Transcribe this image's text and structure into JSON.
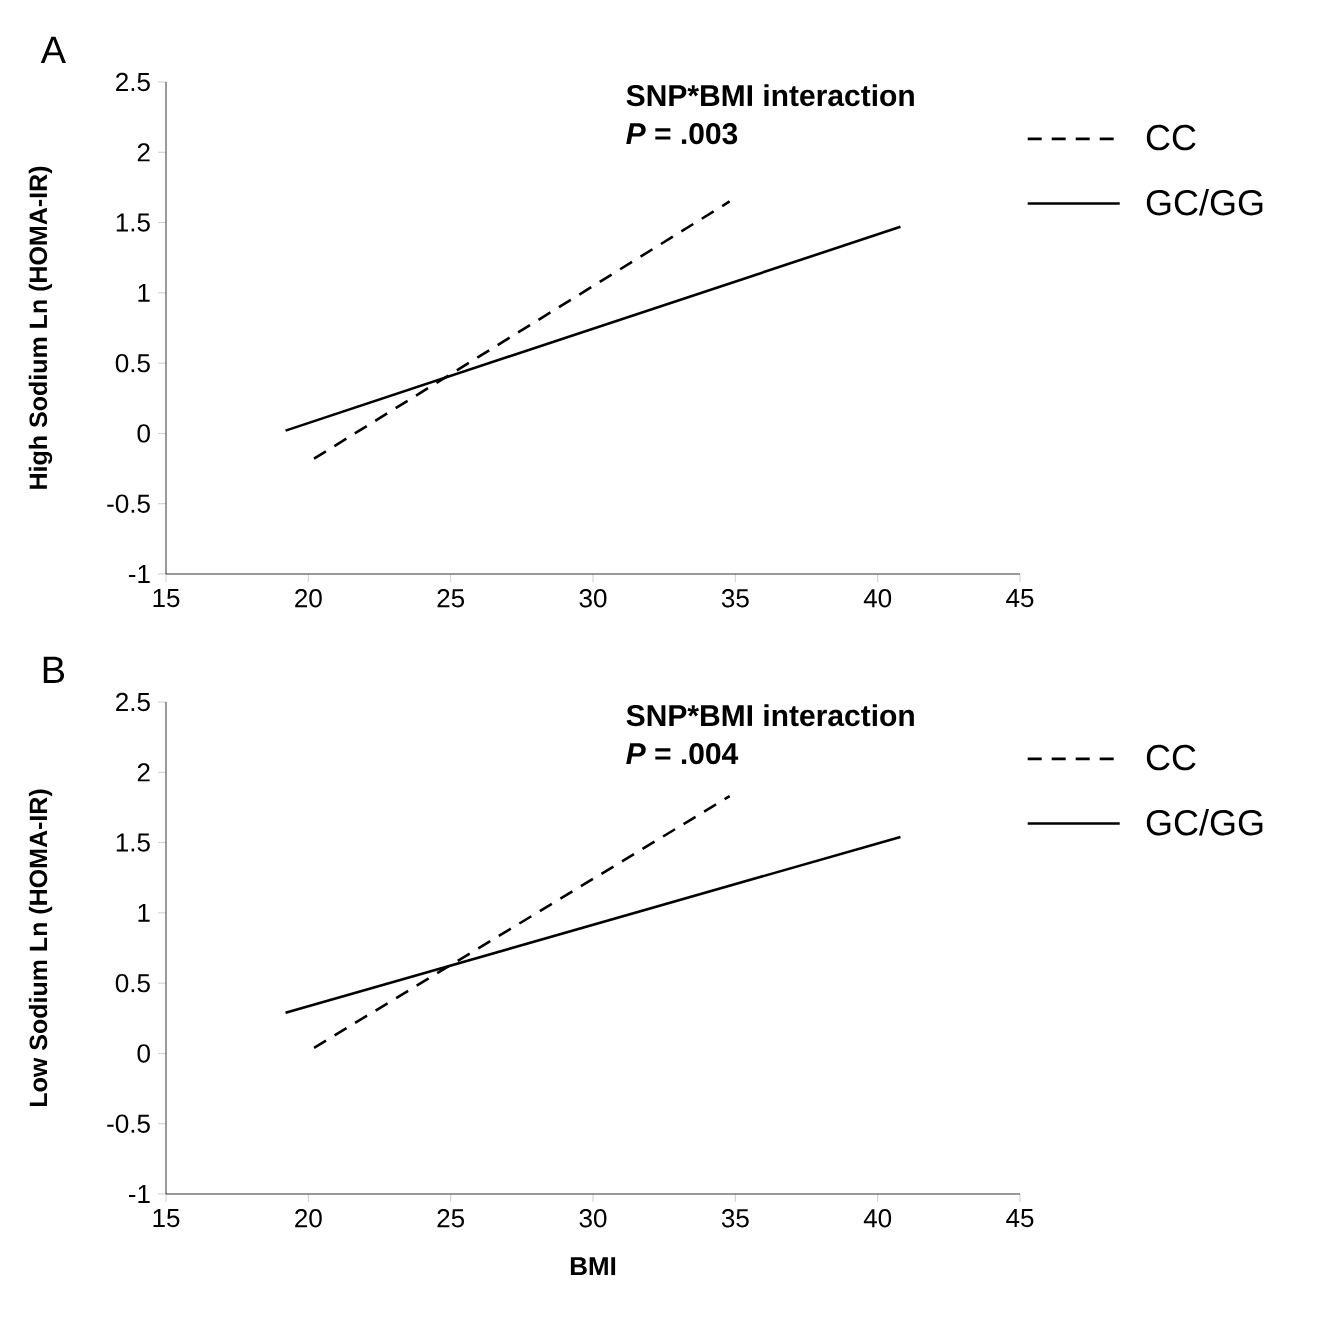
{
  "chart_data": [
    {
      "type": "line",
      "title": "A",
      "ylabel": "High Sodium Ln (HOMA-IR)",
      "annotations": [
        "SNP*BMI interaction",
        "*P* = .003"
      ],
      "xlim": [
        15,
        45
      ],
      "ylim": [
        -1,
        2.5
      ],
      "xticks": [
        15,
        20,
        25,
        30,
        35,
        40,
        45
      ],
      "yticks": [
        -1,
        -0.5,
        0,
        0.5,
        1,
        1.5,
        2,
        2.5
      ],
      "legend": "right",
      "series": [
        {
          "name": "CC",
          "color": "#000000",
          "line_style": "dashed",
          "x": [
            20.2,
            34.8
          ],
          "values": [
            -0.18,
            1.65
          ]
        },
        {
          "name": "GC/GG",
          "color": "#000000",
          "line_style": "solid",
          "x": [
            19.2,
            40.8
          ],
          "values": [
            0.02,
            1.47
          ]
        }
      ]
    },
    {
      "type": "line",
      "title": "B",
      "xlabel": "BMI",
      "ylabel": "Low Sodium Ln (HOMA-IR)",
      "annotations": [
        "SNP*BMI interaction",
        "*P* = .004"
      ],
      "xlim": [
        15,
        45
      ],
      "ylim": [
        -1,
        2.5
      ],
      "xticks": [
        15,
        20,
        25,
        30,
        35,
        40,
        45
      ],
      "yticks": [
        -1,
        -0.5,
        0,
        0.5,
        1,
        1.5,
        2,
        2.5
      ],
      "legend": "right",
      "series": [
        {
          "name": "CC",
          "color": "#000000",
          "line_style": "dashed",
          "x": [
            20.2,
            34.8
          ],
          "values": [
            0.04,
            1.83
          ]
        },
        {
          "name": "GC/GG",
          "color": "#000000",
          "line_style": "solid",
          "x": [
            19.2,
            40.8
          ],
          "values": [
            0.29,
            1.54
          ]
        }
      ]
    }
  ]
}
